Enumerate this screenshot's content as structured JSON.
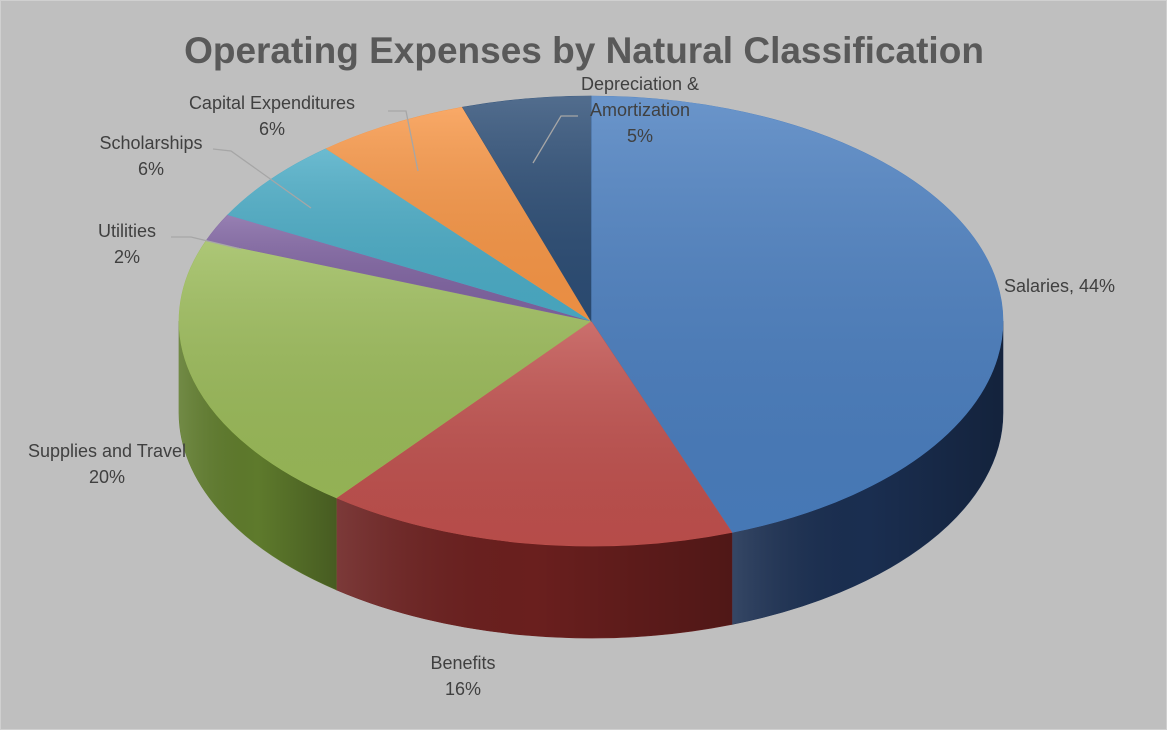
{
  "chart_data": {
    "type": "pie",
    "title": "Operating Expenses by Natural Classification",
    "slices": [
      {
        "label": "Salaries",
        "percent_label": "44%",
        "value": 44,
        "color": "#4a7ebf",
        "side_color": "#1a2e50"
      },
      {
        "label": "Benefits",
        "percent_label": "16%",
        "value": 16,
        "color": "#c0504d",
        "side_color": "#6a1f1e"
      },
      {
        "label": "Supplies and Travel",
        "percent_label": "20%",
        "value": 20,
        "color": "#9bbb59",
        "side_color": "#5e7a2c"
      },
      {
        "label": "Utilities",
        "percent_label": "2%",
        "value": 2,
        "color": "#8064a2",
        "side_color": "#4a3760"
      },
      {
        "label": "Scholarships",
        "percent_label": "6%",
        "value": 6,
        "color": "#4bacc6",
        "side_color": "#256a7c"
      },
      {
        "label": "Capital Expenditures",
        "percent_label": "6%",
        "value": 6,
        "color": "#f79646",
        "side_color": "#a55a1c"
      },
      {
        "label": "Depreciation & Amortization",
        "label_lines": [
          "Depreciation &",
          "Amortization"
        ],
        "percent_label": "5%",
        "value": 5,
        "color": "#2c4d75",
        "side_color": "#142a44"
      }
    ],
    "legend": "none",
    "data_labels": "outside with leader lines",
    "style": "3d-pie"
  }
}
